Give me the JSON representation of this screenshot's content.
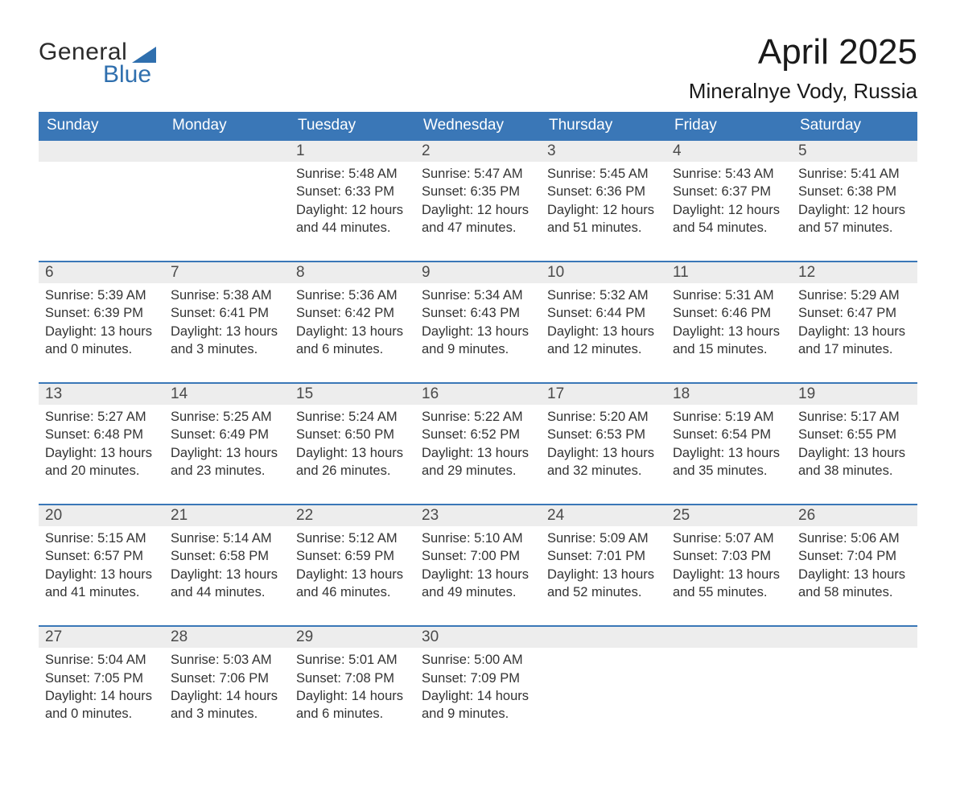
{
  "logo": {
    "line1": "General",
    "line2": "Blue"
  },
  "title": "April 2025",
  "location": "Mineralnye Vody, Russia",
  "colors": {
    "header_bg": "#3a77b7",
    "header_text": "#ffffff",
    "daynum_bg": "#ededed",
    "divider": "#3a77b7",
    "text": "#333333",
    "title": "#1a1a1a",
    "logo_dark": "#2b2b2b",
    "logo_accent": "#2f6fae"
  },
  "weekdays": [
    "Sunday",
    "Monday",
    "Tuesday",
    "Wednesday",
    "Thursday",
    "Friday",
    "Saturday"
  ],
  "weeks": [
    [
      null,
      null,
      {
        "d": "1",
        "sunrise": "5:48 AM",
        "sunset": "6:33 PM",
        "dl1": "12 hours",
        "dl2": "and 44 minutes."
      },
      {
        "d": "2",
        "sunrise": "5:47 AM",
        "sunset": "6:35 PM",
        "dl1": "12 hours",
        "dl2": "and 47 minutes."
      },
      {
        "d": "3",
        "sunrise": "5:45 AM",
        "sunset": "6:36 PM",
        "dl1": "12 hours",
        "dl2": "and 51 minutes."
      },
      {
        "d": "4",
        "sunrise": "5:43 AM",
        "sunset": "6:37 PM",
        "dl1": "12 hours",
        "dl2": "and 54 minutes."
      },
      {
        "d": "5",
        "sunrise": "5:41 AM",
        "sunset": "6:38 PM",
        "dl1": "12 hours",
        "dl2": "and 57 minutes."
      }
    ],
    [
      {
        "d": "6",
        "sunrise": "5:39 AM",
        "sunset": "6:39 PM",
        "dl1": "13 hours",
        "dl2": "and 0 minutes."
      },
      {
        "d": "7",
        "sunrise": "5:38 AM",
        "sunset": "6:41 PM",
        "dl1": "13 hours",
        "dl2": "and 3 minutes."
      },
      {
        "d": "8",
        "sunrise": "5:36 AM",
        "sunset": "6:42 PM",
        "dl1": "13 hours",
        "dl2": "and 6 minutes."
      },
      {
        "d": "9",
        "sunrise": "5:34 AM",
        "sunset": "6:43 PM",
        "dl1": "13 hours",
        "dl2": "and 9 minutes."
      },
      {
        "d": "10",
        "sunrise": "5:32 AM",
        "sunset": "6:44 PM",
        "dl1": "13 hours",
        "dl2": "and 12 minutes."
      },
      {
        "d": "11",
        "sunrise": "5:31 AM",
        "sunset": "6:46 PM",
        "dl1": "13 hours",
        "dl2": "and 15 minutes."
      },
      {
        "d": "12",
        "sunrise": "5:29 AM",
        "sunset": "6:47 PM",
        "dl1": "13 hours",
        "dl2": "and 17 minutes."
      }
    ],
    [
      {
        "d": "13",
        "sunrise": "5:27 AM",
        "sunset": "6:48 PM",
        "dl1": "13 hours",
        "dl2": "and 20 minutes."
      },
      {
        "d": "14",
        "sunrise": "5:25 AM",
        "sunset": "6:49 PM",
        "dl1": "13 hours",
        "dl2": "and 23 minutes."
      },
      {
        "d": "15",
        "sunrise": "5:24 AM",
        "sunset": "6:50 PM",
        "dl1": "13 hours",
        "dl2": "and 26 minutes."
      },
      {
        "d": "16",
        "sunrise": "5:22 AM",
        "sunset": "6:52 PM",
        "dl1": "13 hours",
        "dl2": "and 29 minutes."
      },
      {
        "d": "17",
        "sunrise": "5:20 AM",
        "sunset": "6:53 PM",
        "dl1": "13 hours",
        "dl2": "and 32 minutes."
      },
      {
        "d": "18",
        "sunrise": "5:19 AM",
        "sunset": "6:54 PM",
        "dl1": "13 hours",
        "dl2": "and 35 minutes."
      },
      {
        "d": "19",
        "sunrise": "5:17 AM",
        "sunset": "6:55 PM",
        "dl1": "13 hours",
        "dl2": "and 38 minutes."
      }
    ],
    [
      {
        "d": "20",
        "sunrise": "5:15 AM",
        "sunset": "6:57 PM",
        "dl1": "13 hours",
        "dl2": "and 41 minutes."
      },
      {
        "d": "21",
        "sunrise": "5:14 AM",
        "sunset": "6:58 PM",
        "dl1": "13 hours",
        "dl2": "and 44 minutes."
      },
      {
        "d": "22",
        "sunrise": "5:12 AM",
        "sunset": "6:59 PM",
        "dl1": "13 hours",
        "dl2": "and 46 minutes."
      },
      {
        "d": "23",
        "sunrise": "5:10 AM",
        "sunset": "7:00 PM",
        "dl1": "13 hours",
        "dl2": "and 49 minutes."
      },
      {
        "d": "24",
        "sunrise": "5:09 AM",
        "sunset": "7:01 PM",
        "dl1": "13 hours",
        "dl2": "and 52 minutes."
      },
      {
        "d": "25",
        "sunrise": "5:07 AM",
        "sunset": "7:03 PM",
        "dl1": "13 hours",
        "dl2": "and 55 minutes."
      },
      {
        "d": "26",
        "sunrise": "5:06 AM",
        "sunset": "7:04 PM",
        "dl1": "13 hours",
        "dl2": "and 58 minutes."
      }
    ],
    [
      {
        "d": "27",
        "sunrise": "5:04 AM",
        "sunset": "7:05 PM",
        "dl1": "14 hours",
        "dl2": "and 0 minutes."
      },
      {
        "d": "28",
        "sunrise": "5:03 AM",
        "sunset": "7:06 PM",
        "dl1": "14 hours",
        "dl2": "and 3 minutes."
      },
      {
        "d": "29",
        "sunrise": "5:01 AM",
        "sunset": "7:08 PM",
        "dl1": "14 hours",
        "dl2": "and 6 minutes."
      },
      {
        "d": "30",
        "sunrise": "5:00 AM",
        "sunset": "7:09 PM",
        "dl1": "14 hours",
        "dl2": "and 9 minutes."
      },
      null,
      null,
      null
    ]
  ],
  "labels": {
    "sunrise_prefix": "Sunrise: ",
    "sunset_prefix": "Sunset: ",
    "daylight_prefix": "Daylight: "
  }
}
